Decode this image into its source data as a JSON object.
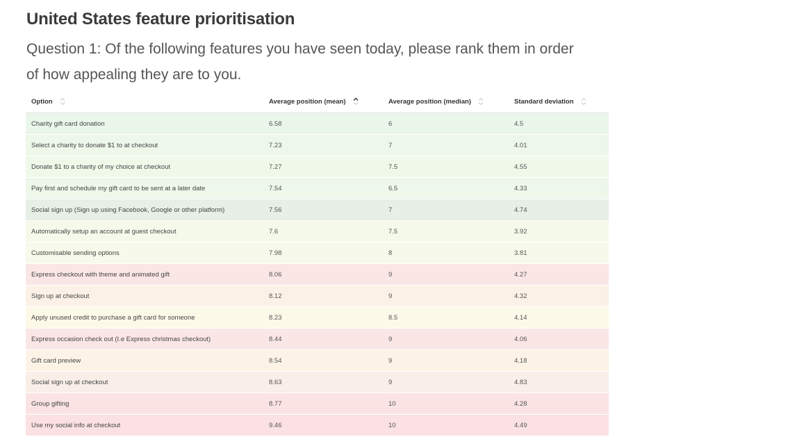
{
  "title": "United States feature prioritisation",
  "question": "Question 1: Of the following features you have seen today, please rank them in order of how appealing they are to you.",
  "columns": {
    "option": "Option",
    "mean": "Average position (mean)",
    "median": "Average position (median)",
    "stddev": "Standard deviation"
  },
  "sort": {
    "column": "mean",
    "direction": "ascending"
  },
  "rows": [
    {
      "option": "Charity gift card donation",
      "mean": "6.58",
      "median": "6",
      "stddev": "4.5",
      "color": "#eaf6ea"
    },
    {
      "option": "Select a charity to donate $1 to at checkout",
      "mean": "7.23",
      "median": "7",
      "stddev": "4.01",
      "color": "#edf7ea"
    },
    {
      "option": "Donate $1 to a charity of my choice at checkout",
      "mean": "7.27",
      "median": "7.5",
      "stddev": "4.55",
      "color": "#f0f8ea"
    },
    {
      "option": "Pay first and schedule my gift card to be sent at a later date",
      "mean": "7.54",
      "median": "6.5",
      "stddev": "4.33",
      "color": "#edf7ea"
    },
    {
      "option": "Social sign up (Sign up using Facebook, Google or other platform)",
      "mean": "7.56",
      "median": "7",
      "stddev": "4.74",
      "color": "#e7efe6"
    },
    {
      "option": "Automatically setup an account at guest checkout",
      "mean": "7.6",
      "median": "7.5",
      "stddev": "3.92",
      "color": "#f5f9ea"
    },
    {
      "option": "Customisable sending options",
      "mean": "7.98",
      "median": "8",
      "stddev": "3.81",
      "color": "#f7f9ea"
    },
    {
      "option": "Express checkout with theme and animated gift",
      "mean": "8.06",
      "median": "9",
      "stddev": "4.27",
      "color": "#fbe6e6"
    },
    {
      "option": "Sign up at checkout",
      "mean": "8.12",
      "median": "9",
      "stddev": "4.32",
      "color": "#fbf1e6"
    },
    {
      "option": "Apply unused credit to purchase a gift card for someone",
      "mean": "8.23",
      "median": "8.5",
      "stddev": "4.14",
      "color": "#fdf9e9"
    },
    {
      "option": "Express occasion check out (I.e Express christmas checkout)",
      "mean": "8.44",
      "median": "9",
      "stddev": "4.06",
      "color": "#fbe6e6"
    },
    {
      "option": "Gift card preview",
      "mean": "8.54",
      "median": "9",
      "stddev": "4.18",
      "color": "#fcf3e6"
    },
    {
      "option": "Social sign up at checkout",
      "mean": "8.63",
      "median": "9",
      "stddev": "4.83",
      "color": "#faeee8"
    },
    {
      "option": "Group gifting",
      "mean": "8.77",
      "median": "10",
      "stddev": "4.28",
      "color": "#fbe3e4"
    },
    {
      "option": "Use my social info at checkout",
      "mean": "9.46",
      "median": "10",
      "stddev": "4.49",
      "color": "#fbe1e4"
    }
  ]
}
